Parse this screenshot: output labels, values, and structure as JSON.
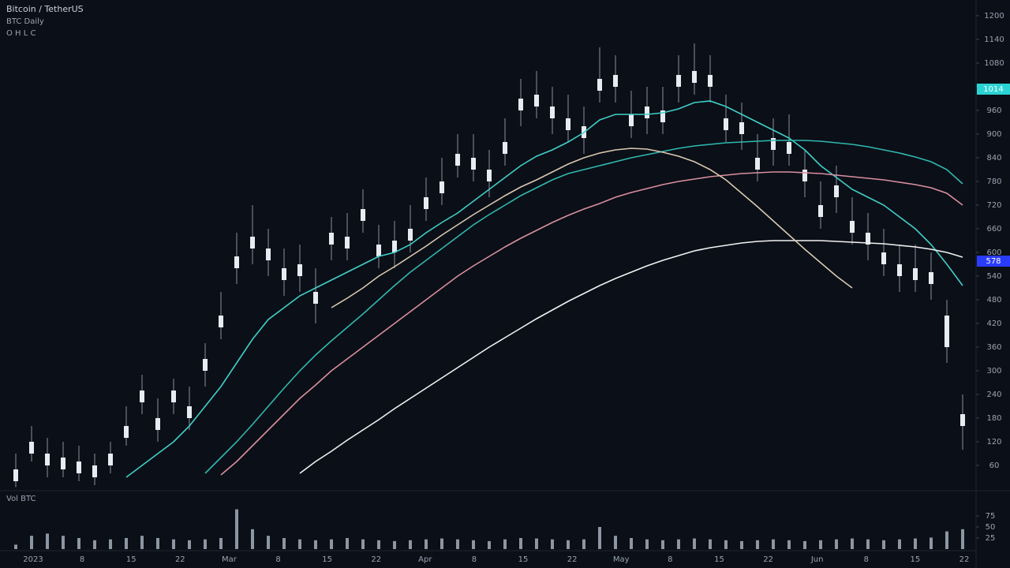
{
  "chart_data": {
    "type": "candlestick",
    "title": "Bitcoin / TetherUS",
    "subtitle": "BTC Daily",
    "info": "O H L C",
    "volume_label": "Vol BTC",
    "ylim": [
      0,
      1240
    ],
    "yticks": [
      60,
      120,
      180,
      240,
      300,
      360,
      420,
      480,
      540,
      600,
      660,
      720,
      780,
      840,
      900,
      960,
      1020,
      1080,
      1140,
      1200
    ],
    "categories": [
      "2023",
      "8",
      "15",
      "22",
      "Mar",
      "8",
      "15",
      "22",
      "Apr",
      "8",
      "15",
      "22",
      "May",
      "8",
      "15",
      "22",
      "Jun",
      "8",
      "15",
      "22"
    ],
    "ohlc": [
      [
        50,
        90,
        5,
        20
      ],
      [
        90,
        160,
        70,
        120
      ],
      [
        90,
        130,
        30,
        60
      ],
      [
        50,
        120,
        30,
        80
      ],
      [
        70,
        110,
        20,
        40
      ],
      [
        60,
        90,
        10,
        30
      ],
      [
        90,
        120,
        40,
        60
      ],
      [
        130,
        210,
        110,
        160
      ],
      [
        250,
        290,
        190,
        220
      ],
      [
        150,
        230,
        120,
        180
      ],
      [
        250,
        280,
        190,
        220
      ],
      [
        180,
        260,
        150,
        210
      ],
      [
        330,
        370,
        260,
        300
      ],
      [
        410,
        500,
        380,
        440
      ],
      [
        590,
        650,
        520,
        560
      ],
      [
        610,
        720,
        570,
        640
      ],
      [
        610,
        660,
        540,
        580
      ],
      [
        530,
        610,
        490,
        560
      ],
      [
        570,
        620,
        500,
        540
      ],
      [
        470,
        560,
        420,
        500
      ],
      [
        650,
        690,
        580,
        620
      ],
      [
        610,
        700,
        580,
        640
      ],
      [
        710,
        760,
        650,
        680
      ],
      [
        590,
        670,
        560,
        620
      ],
      [
        630,
        680,
        560,
        600
      ],
      [
        630,
        720,
        600,
        660
      ],
      [
        740,
        790,
        680,
        710
      ],
      [
        750,
        840,
        720,
        780
      ],
      [
        850,
        900,
        790,
        820
      ],
      [
        810,
        900,
        780,
        840
      ],
      [
        810,
        860,
        740,
        780
      ],
      [
        850,
        940,
        820,
        880
      ],
      [
        990,
        1040,
        920,
        960
      ],
      [
        970,
        1060,
        940,
        1000
      ],
      [
        970,
        1020,
        900,
        940
      ],
      [
        910,
        1000,
        880,
        940
      ],
      [
        920,
        970,
        850,
        890
      ],
      [
        1010,
        1120,
        980,
        1040
      ],
      [
        1050,
        1100,
        980,
        1020
      ],
      [
        920,
        1010,
        890,
        950
      ],
      [
        970,
        1020,
        900,
        940
      ],
      [
        930,
        1020,
        900,
        960
      ],
      [
        1050,
        1100,
        980,
        1020
      ],
      [
        1030,
        1130,
        1000,
        1060
      ],
      [
        1050,
        1100,
        980,
        1020
      ],
      [
        910,
        1000,
        880,
        940
      ],
      [
        930,
        980,
        860,
        900
      ],
      [
        810,
        900,
        780,
        840
      ],
      [
        890,
        940,
        820,
        860
      ],
      [
        850,
        950,
        820,
        880
      ],
      [
        810,
        860,
        740,
        780
      ],
      [
        690,
        780,
        660,
        720
      ],
      [
        770,
        820,
        700,
        740
      ],
      [
        650,
        740,
        620,
        680
      ],
      [
        650,
        700,
        580,
        620
      ],
      [
        570,
        660,
        540,
        600
      ],
      [
        570,
        620,
        500,
        540
      ],
      [
        530,
        620,
        500,
        560
      ],
      [
        550,
        600,
        480,
        520
      ],
      [
        440,
        480,
        320,
        360
      ],
      [
        190,
        240,
        100,
        160
      ]
    ],
    "candle_color": "#e8ecf2",
    "wick_color": "#8a929e",
    "moving_averages": [
      {
        "color": "#3fd0c9",
        "values": [
          null,
          null,
          null,
          null,
          null,
          null,
          null,
          30,
          60,
          90,
          120,
          160,
          210,
          260,
          320,
          380,
          430,
          460,
          490,
          510,
          530,
          550,
          570,
          590,
          600,
          620,
          650,
          676,
          700,
          730,
          760,
          790,
          820,
          844,
          860,
          880,
          904,
          936,
          950,
          950,
          950,
          954,
          964,
          980,
          984,
          970,
          950,
          930,
          910,
          890,
          860,
          820,
          790,
          760,
          740,
          720,
          690,
          660,
          620,
          570,
          516
        ]
      },
      {
        "color": "#2fb8b0",
        "values": [
          null,
          null,
          null,
          null,
          null,
          null,
          null,
          null,
          null,
          null,
          null,
          null,
          40,
          80,
          120,
          164,
          210,
          256,
          300,
          340,
          376,
          410,
          444,
          480,
          516,
          550,
          580,
          610,
          640,
          670,
          696,
          720,
          744,
          764,
          784,
          800,
          810,
          820,
          830,
          840,
          848,
          856,
          864,
          870,
          874,
          878,
          880,
          882,
          884,
          884,
          884,
          882,
          878,
          874,
          868,
          860,
          852,
          842,
          830,
          810,
          774
        ]
      },
      {
        "color": "#d98fa0",
        "values": [
          null,
          null,
          null,
          null,
          null,
          null,
          null,
          null,
          null,
          null,
          null,
          null,
          null,
          36,
          70,
          110,
          150,
          190,
          230,
          264,
          300,
          330,
          360,
          390,
          420,
          450,
          480,
          510,
          540,
          566,
          590,
          614,
          636,
          656,
          676,
          694,
          710,
          724,
          740,
          752,
          762,
          772,
          780,
          786,
          792,
          796,
          800,
          802,
          804,
          804,
          802,
          800,
          796,
          792,
          788,
          784,
          778,
          772,
          764,
          750,
          720
        ]
      },
      {
        "color": "#f2f2f2",
        "values": [
          null,
          null,
          null,
          null,
          null,
          null,
          null,
          null,
          null,
          null,
          null,
          null,
          null,
          null,
          null,
          null,
          null,
          null,
          40,
          70,
          96,
          124,
          150,
          176,
          204,
          230,
          256,
          282,
          308,
          334,
          360,
          384,
          408,
          432,
          454,
          476,
          496,
          516,
          534,
          550,
          566,
          580,
          592,
          604,
          612,
          618,
          624,
          628,
          630,
          630,
          630,
          630,
          628,
          626,
          624,
          622,
          618,
          614,
          608,
          600,
          588
        ]
      },
      {
        "color": "#d8c8b0",
        "values": [
          null,
          null,
          null,
          null,
          null,
          null,
          null,
          null,
          null,
          null,
          null,
          null,
          null,
          null,
          null,
          null,
          null,
          null,
          null,
          null,
          460,
          484,
          510,
          540,
          564,
          590,
          616,
          644,
          670,
          696,
          720,
          744,
          766,
          784,
          804,
          824,
          840,
          852,
          860,
          864,
          862,
          854,
          844,
          830,
          810,
          784,
          750,
          716,
          680,
          644,
          608,
          574,
          540,
          510,
          null,
          null,
          null,
          null,
          null,
          null,
          null
        ]
      }
    ],
    "volume": [
      10,
      30,
      35,
      30,
      25,
      20,
      22,
      25,
      30,
      25,
      22,
      20,
      22,
      25,
      90,
      45,
      30,
      25,
      22,
      20,
      22,
      25,
      22,
      20,
      18,
      20,
      22,
      24,
      22,
      20,
      18,
      22,
      25,
      24,
      22,
      20,
      22,
      50,
      30,
      25,
      22,
      20,
      22,
      24,
      22,
      20,
      18,
      20,
      22,
      20,
      18,
      20,
      22,
      24,
      22,
      20,
      22,
      24,
      26,
      40,
      45
    ],
    "volume_color": "#8d96a3",
    "vlim": [
      0,
      100
    ],
    "vticks": [
      25,
      50,
      75
    ],
    "price_markers": [
      {
        "value": 1014,
        "color": "#2bd4d4"
      },
      {
        "value": 578,
        "color": "#2a3cff"
      }
    ]
  }
}
